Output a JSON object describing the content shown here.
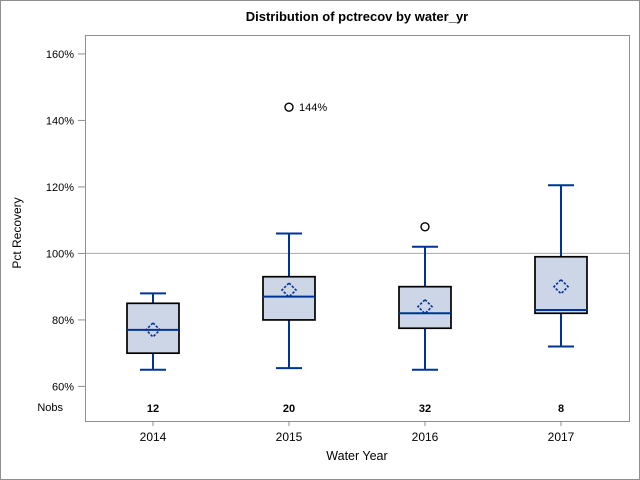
{
  "chart_data": {
    "type": "box",
    "title": "Distribution of pctrecov by water_yr",
    "xlabel": "Water Year",
    "ylabel": "Pct Recovery",
    "nobs_label": "Nobs",
    "ylim": [
      49.6,
      165.7
    ],
    "y_ticks": [
      60,
      80,
      100,
      120,
      140,
      160
    ],
    "y_tick_labels": [
      "60%",
      "80%",
      "100%",
      "120%",
      "140%",
      "160%"
    ],
    "reference_line": 100,
    "categories": [
      "2014",
      "2015",
      "2016",
      "2017"
    ],
    "nobs": [
      12,
      20,
      32,
      8
    ],
    "series": [
      {
        "category": "2014",
        "nobs": 12,
        "whisker_low": 65,
        "q1": 70,
        "median": 77,
        "mean": 77,
        "q3": 85,
        "whisker_high": 88,
        "outliers": []
      },
      {
        "category": "2015",
        "nobs": 20,
        "whisker_low": 65.5,
        "q1": 80,
        "median": 87,
        "mean": 89,
        "q3": 93,
        "whisker_high": 106,
        "outliers": [
          {
            "value": 144,
            "label": "144%"
          }
        ]
      },
      {
        "category": "2016",
        "nobs": 32,
        "whisker_low": 65,
        "q1": 77.5,
        "median": 82,
        "mean": 84,
        "q3": 90,
        "whisker_high": 102,
        "outliers": [
          {
            "value": 108,
            "label": ""
          }
        ]
      },
      {
        "category": "2017",
        "nobs": 8,
        "whisker_low": 72,
        "q1": 82,
        "median": 83,
        "mean": 90,
        "q3": 99,
        "whisker_high": 120.5,
        "outliers": []
      }
    ],
    "colors": {
      "box_fill": "#ccd6e6",
      "box_border": "#000000",
      "whisker": "#003399",
      "median": "#003399",
      "mean_marker": "#003399",
      "outlier": "#000000",
      "reference_line": "#a8a8a8",
      "axis_frame": "#8f8f8f",
      "text": "#000000"
    },
    "legend": null,
    "grid": "off"
  }
}
